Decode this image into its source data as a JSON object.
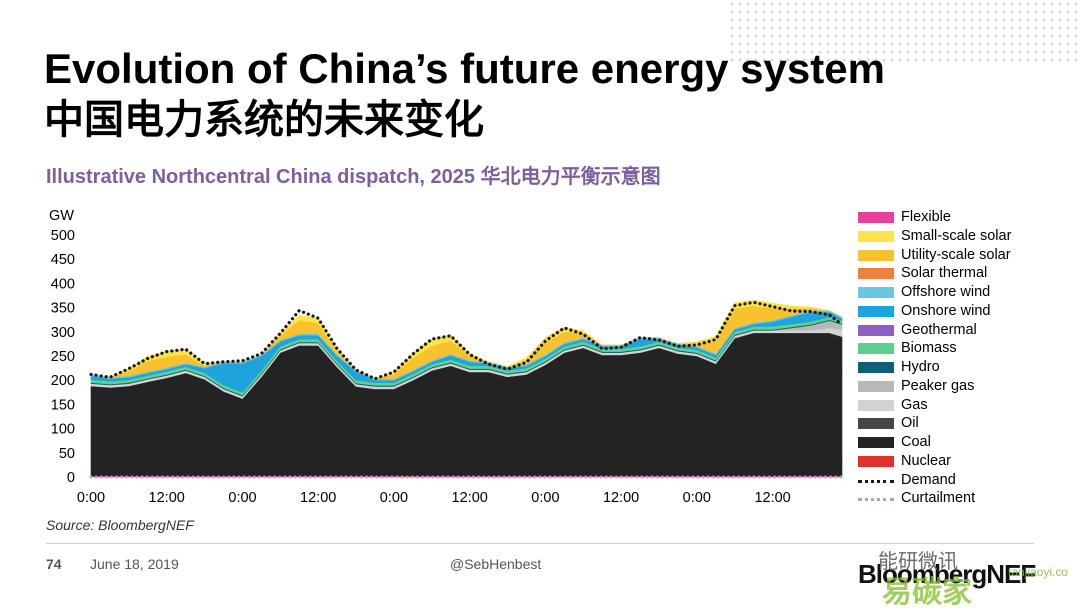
{
  "header": {
    "title": "Evolution of China’s future energy system",
    "title_cn": "中国电力系统的未来变化",
    "subtitle": "Illustrative Northcentral China dispatch, 2025 华北电力平衡示意图"
  },
  "footer": {
    "source": "Source: BloombergNEF",
    "page_number": "74",
    "date": "June 18, 2019",
    "handle": "@SebHenbest",
    "logo_text": "BloombergNEF",
    "watermark_1": "能研微讯",
    "watermark_2": "易碳家",
    "watermark_3": "tanjiaoyi.com"
  },
  "chart_data": {
    "type": "area",
    "stacked": true,
    "ylabel": "GW",
    "ylim": [
      0,
      500
    ],
    "yticks": [
      0,
      50,
      100,
      150,
      200,
      250,
      300,
      350,
      400,
      450,
      500
    ],
    "x": [
      0,
      3,
      6,
      9,
      12,
      15,
      18,
      21,
      24,
      27,
      30,
      33,
      36,
      39,
      42,
      45,
      48,
      51,
      54,
      57,
      60,
      63,
      66,
      69,
      72,
      75,
      78,
      81,
      84,
      87,
      90,
      93,
      96,
      99,
      102,
      105,
      108,
      111,
      114,
      117,
      119
    ],
    "x_unit": "hours",
    "xticks": [
      0,
      12,
      24,
      36,
      48,
      60,
      72,
      84,
      96,
      108
    ],
    "xtick_labels": [
      "0:00",
      "12:00",
      "0:00",
      "12:00",
      "0:00",
      "12:00",
      "0:00",
      "12:00",
      "0:00",
      "12:00"
    ],
    "grid": false,
    "legend_position": "right",
    "series": [
      {
        "name": "Nuclear",
        "color": "#e0322a",
        "values": [
          2,
          2,
          2,
          2,
          2,
          2,
          2,
          2,
          2,
          2,
          2,
          2,
          2,
          2,
          2,
          2,
          2,
          2,
          2,
          2,
          2,
          2,
          2,
          2,
          2,
          2,
          2,
          2,
          2,
          2,
          2,
          2,
          2,
          2,
          2,
          2,
          2,
          2,
          2,
          2,
          2
        ]
      },
      {
        "name": "Coal",
        "color": "#232323",
        "values": [
          186,
          183,
          186,
          195,
          203,
          213,
          200,
          175,
          160,
          205,
          255,
          270,
          270,
          225,
          185,
          180,
          180,
          198,
          218,
          228,
          215,
          215,
          205,
          210,
          230,
          255,
          265,
          250,
          250,
          255,
          265,
          253,
          248,
          232,
          285,
          296,
          296,
          296,
          296,
          296,
          288
        ]
      },
      {
        "name": "Oil",
        "color": "#474747",
        "values": [
          0,
          0,
          0,
          0,
          0,
          0,
          0,
          0,
          0,
          0,
          0,
          0,
          0,
          0,
          0,
          0,
          0,
          0,
          0,
          0,
          0,
          0,
          0,
          0,
          0,
          0,
          0,
          0,
          0,
          0,
          0,
          0,
          0,
          0,
          0,
          0,
          0,
          0,
          0,
          0,
          0
        ]
      },
      {
        "name": "Gas",
        "color": "#d3d3d3",
        "values": [
          5,
          5,
          5,
          5,
          5,
          5,
          5,
          5,
          5,
          5,
          5,
          5,
          5,
          5,
          5,
          5,
          5,
          5,
          5,
          5,
          5,
          5,
          5,
          5,
          5,
          5,
          5,
          5,
          5,
          5,
          5,
          5,
          5,
          5,
          5,
          5,
          5,
          5,
          5,
          10,
          15
        ]
      },
      {
        "name": "Peaker gas",
        "color": "#b8b8b8",
        "values": [
          0,
          0,
          0,
          0,
          0,
          0,
          0,
          0,
          0,
          0,
          0,
          0,
          0,
          0,
          0,
          0,
          0,
          0,
          0,
          0,
          0,
          0,
          0,
          0,
          0,
          0,
          0,
          0,
          0,
          0,
          0,
          0,
          0,
          0,
          0,
          0,
          0,
          5,
          10,
          15,
          10
        ]
      },
      {
        "name": "Hydro",
        "color": "#0f5f7a",
        "values": [
          2,
          2,
          2,
          2,
          2,
          2,
          2,
          2,
          2,
          2,
          2,
          2,
          2,
          2,
          2,
          2,
          2,
          2,
          2,
          2,
          2,
          2,
          2,
          2,
          2,
          2,
          2,
          2,
          2,
          2,
          2,
          2,
          2,
          2,
          2,
          2,
          2,
          2,
          2,
          2,
          2
        ]
      },
      {
        "name": "Biomass",
        "color": "#5fcf8e",
        "values": [
          6,
          6,
          6,
          6,
          6,
          6,
          6,
          6,
          6,
          6,
          6,
          6,
          6,
          6,
          6,
          6,
          6,
          6,
          6,
          6,
          6,
          6,
          6,
          6,
          6,
          6,
          6,
          6,
          6,
          6,
          6,
          6,
          6,
          6,
          6,
          6,
          6,
          6,
          6,
          6,
          6
        ]
      },
      {
        "name": "Geothermal",
        "color": "#8e5fc2",
        "values": [
          0,
          0,
          0,
          0,
          0,
          0,
          0,
          0,
          0,
          0,
          0,
          0,
          0,
          0,
          0,
          0,
          0,
          0,
          0,
          0,
          0,
          0,
          0,
          0,
          0,
          0,
          0,
          0,
          0,
          0,
          0,
          0,
          0,
          0,
          0,
          0,
          0,
          0,
          0,
          0,
          0
        ]
      },
      {
        "name": "Onshore wind",
        "color": "#1fa3dc",
        "values": [
          8,
          5,
          5,
          5,
          5,
          5,
          10,
          45,
          60,
          30,
          10,
          8,
          8,
          10,
          18,
          5,
          5,
          5,
          5,
          8,
          8,
          5,
          5,
          5,
          5,
          5,
          5,
          5,
          5,
          15,
          5,
          5,
          5,
          5,
          5,
          5,
          10,
          15,
          20,
          10,
          5
        ]
      },
      {
        "name": "Offshore wind",
        "color": "#6cc4e3",
        "values": [
          3,
          3,
          3,
          3,
          3,
          3,
          3,
          3,
          3,
          3,
          3,
          3,
          3,
          3,
          3,
          3,
          3,
          3,
          3,
          3,
          3,
          3,
          3,
          3,
          3,
          3,
          3,
          3,
          3,
          3,
          3,
          3,
          3,
          3,
          3,
          3,
          3,
          3,
          3,
          3,
          3
        ]
      },
      {
        "name": "Solar thermal",
        "color": "#f08040",
        "values": [
          0,
          0,
          0,
          0,
          0,
          0,
          0,
          0,
          0,
          0,
          0,
          0,
          0,
          0,
          0,
          0,
          0,
          0,
          0,
          0,
          0,
          0,
          0,
          0,
          0,
          0,
          0,
          0,
          0,
          0,
          0,
          0,
          0,
          0,
          0,
          0,
          0,
          0,
          0,
          0,
          0
        ]
      },
      {
        "name": "Utility-scale solar",
        "color": "#f8c22e",
        "values": [
          0,
          0,
          10,
          22,
          22,
          18,
          3,
          0,
          0,
          0,
          10,
          28,
          22,
          8,
          0,
          0,
          10,
          25,
          30,
          28,
          10,
          0,
          0,
          10,
          25,
          22,
          10,
          0,
          0,
          0,
          0,
          0,
          5,
          25,
          40,
          35,
          25,
          15,
          5,
          0,
          0
        ]
      },
      {
        "name": "Small-scale solar",
        "color": "#fbe44a",
        "values": [
          0,
          0,
          5,
          10,
          11,
          10,
          3,
          0,
          0,
          0,
          4,
          10,
          10,
          4,
          0,
          0,
          4,
          10,
          14,
          12,
          4,
          0,
          0,
          4,
          10,
          10,
          4,
          0,
          0,
          0,
          0,
          0,
          4,
          10,
          12,
          12,
          10,
          4,
          2,
          0,
          0
        ]
      },
      {
        "name": "Flexible",
        "color": "#ea3e9b",
        "values": [
          0,
          0,
          0,
          0,
          0,
          0,
          0,
          0,
          0,
          0,
          0,
          0,
          0,
          0,
          0,
          0,
          0,
          0,
          0,
          0,
          0,
          0,
          0,
          0,
          0,
          0,
          0,
          0,
          0,
          0,
          0,
          0,
          0,
          0,
          0,
          0,
          0,
          0,
          0,
          0,
          0
        ]
      }
    ],
    "demand": {
      "name": "Demand",
      "color": "#1a1a1a",
      "values": [
        212,
        206,
        224,
        245,
        259,
        264,
        234,
        238,
        240,
        255,
        297,
        344,
        328,
        265,
        221,
        203,
        217,
        254,
        285,
        292,
        253,
        233,
        223,
        237,
        281,
        308,
        295,
        265,
        268,
        288,
        283,
        270,
        273,
        284,
        354,
        361,
        352,
        343,
        342,
        335,
        315
      ]
    },
    "curtailment": {
      "name": "Curtailment",
      "color": "#b39bd8",
      "values": [
        0,
        0,
        0,
        0,
        0,
        0,
        0,
        0,
        0,
        0,
        0,
        0,
        0,
        0,
        0,
        0,
        0,
        0,
        0,
        0,
        0,
        0,
        0,
        0,
        0,
        0,
        0,
        0,
        0,
        0,
        0,
        0,
        0,
        0,
        0,
        0,
        0,
        0,
        0,
        0,
        0
      ]
    },
    "legend": [
      {
        "name": "Flexible",
        "color": "#ea3e9b",
        "kind": "area"
      },
      {
        "name": "Small-scale solar",
        "color": "#fbe44a",
        "kind": "area"
      },
      {
        "name": "Utility-scale solar",
        "color": "#f8c22e",
        "kind": "area"
      },
      {
        "name": "Solar thermal",
        "color": "#f08040",
        "kind": "area"
      },
      {
        "name": "Offshore wind",
        "color": "#6cc4e3",
        "kind": "area"
      },
      {
        "name": "Onshore wind",
        "color": "#1fa3dc",
        "kind": "area"
      },
      {
        "name": "Geothermal",
        "color": "#8e5fc2",
        "kind": "area"
      },
      {
        "name": "Biomass",
        "color": "#5fcf8e",
        "kind": "area"
      },
      {
        "name": "Hydro",
        "color": "#0f5f7a",
        "kind": "area"
      },
      {
        "name": "Peaker gas",
        "color": "#b8b8b8",
        "kind": "area"
      },
      {
        "name": "Gas",
        "color": "#d3d3d3",
        "kind": "area"
      },
      {
        "name": "Oil",
        "color": "#474747",
        "kind": "area"
      },
      {
        "name": "Coal",
        "color": "#232323",
        "kind": "area"
      },
      {
        "name": "Nuclear",
        "color": "#e0322a",
        "kind": "area"
      },
      {
        "name": "Demand",
        "color": "#1a1a1a",
        "kind": "dotted"
      },
      {
        "name": "Curtailment",
        "color": "#b39bd8",
        "kind": "dotted"
      }
    ]
  }
}
